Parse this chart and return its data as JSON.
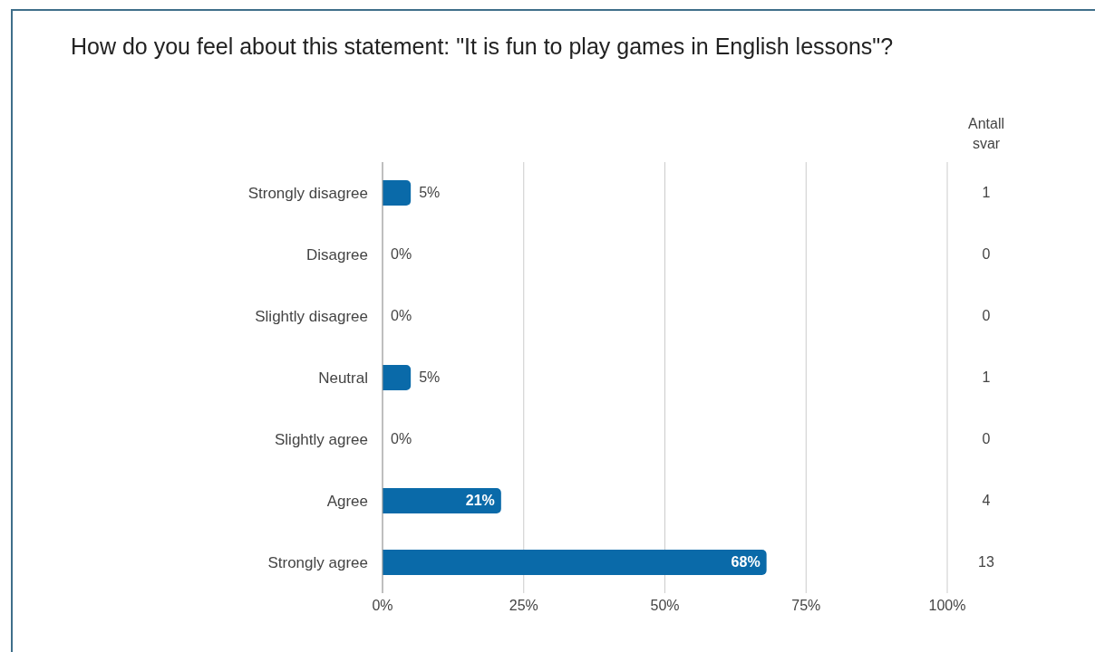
{
  "chart_data": {
    "type": "bar",
    "orientation": "horizontal",
    "title": "How do you feel about this statement: \"It is fun to play games in English lessons\"?",
    "categories": [
      "Strongly disagree",
      "Disagree",
      "Slightly disagree",
      "Neutral",
      "Slightly agree",
      "Agree",
      "Strongly agree"
    ],
    "values": [
      5,
      0,
      0,
      5,
      0,
      21,
      68
    ],
    "color": "#0a6aa9",
    "value_labels": [
      "5%",
      "0%",
      "0%",
      "5%",
      "0%",
      "21%",
      "68%"
    ],
    "xlim": [
      0,
      100
    ],
    "xticks": [
      {
        "value": 0,
        "label": "0%"
      },
      {
        "value": 25,
        "label": "25%"
      },
      {
        "value": 50,
        "label": "50%"
      },
      {
        "value": 75,
        "label": "75%"
      },
      {
        "value": 100,
        "label": "100%"
      }
    ],
    "grid": "x",
    "annotations": [
      "Antall svar",
      "1",
      "0",
      "0",
      "1",
      "0",
      "4",
      "13"
    ]
  }
}
